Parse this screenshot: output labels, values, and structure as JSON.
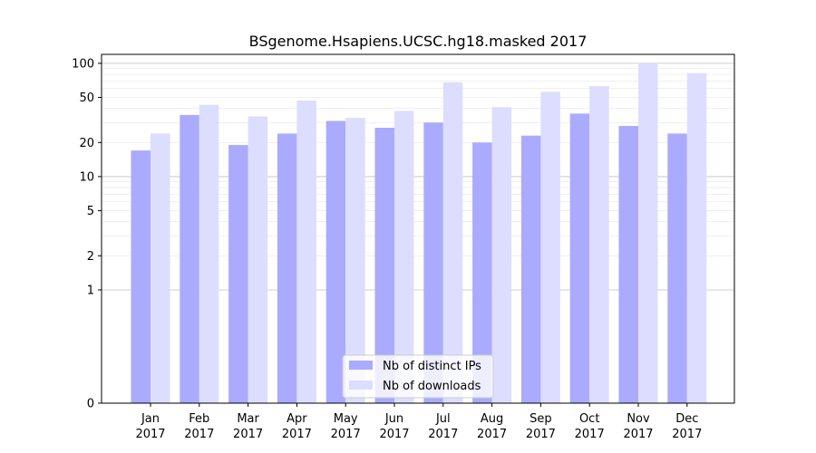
{
  "chart_data": {
    "type": "bar",
    "title": "BSgenome.Hsapiens.UCSC.hg18.masked 2017",
    "xlabel": "",
    "ylabel": "",
    "yscale": "symlog",
    "ylim": [
      0,
      120
    ],
    "yticks": [
      0,
      1,
      2,
      5,
      10,
      20,
      50,
      100
    ],
    "ytick_labels": [
      "0",
      "1",
      "2",
      "5",
      "10",
      "20",
      "50",
      "100"
    ],
    "grid": true,
    "legend_position": "bottom-center",
    "categories": [
      [
        "Jan",
        "2017"
      ],
      [
        "Feb",
        "2017"
      ],
      [
        "Mar",
        "2017"
      ],
      [
        "Apr",
        "2017"
      ],
      [
        "May",
        "2017"
      ],
      [
        "Jun",
        "2017"
      ],
      [
        "Jul",
        "2017"
      ],
      [
        "Aug",
        "2017"
      ],
      [
        "Sep",
        "2017"
      ],
      [
        "Oct",
        "2017"
      ],
      [
        "Nov",
        "2017"
      ],
      [
        "Dec",
        "2017"
      ]
    ],
    "series": [
      {
        "name": "Nb of distinct IPs",
        "color": "#aaaaff",
        "values": [
          17,
          35,
          19,
          24,
          31,
          27,
          30,
          20,
          23,
          36,
          28,
          24
        ]
      },
      {
        "name": "Nb of downloads",
        "color": "#ddddff",
        "values": [
          24,
          43,
          34,
          47,
          33,
          38,
          68,
          41,
          56,
          63,
          100,
          82
        ]
      }
    ]
  }
}
